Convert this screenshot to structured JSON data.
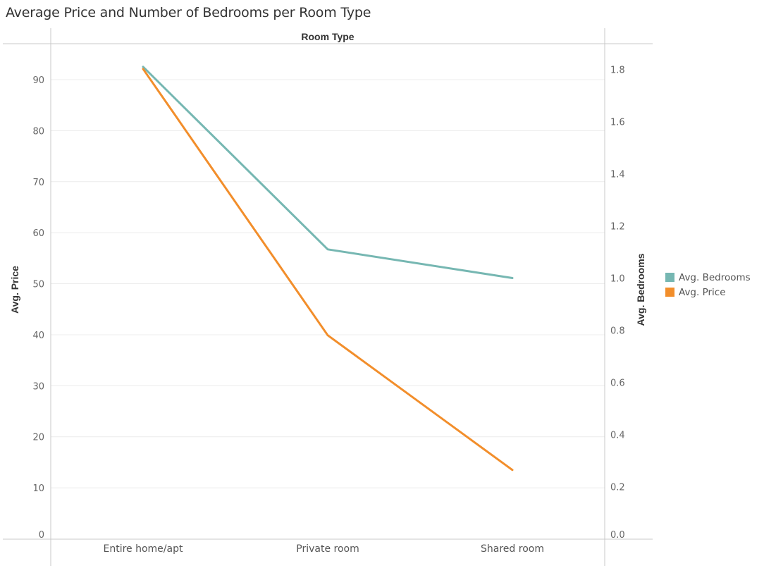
{
  "chart_data": {
    "type": "line",
    "title": "Average Price and Number of Bedrooms per Room Type",
    "column_header": "Room Type",
    "categories": [
      "Entire home/apt",
      "Private room",
      "Shared room"
    ],
    "series": [
      {
        "name": "Avg. Bedrooms",
        "axis": "right",
        "color": "#76b7b2",
        "values": [
          1.81,
          1.11,
          1.0
        ]
      },
      {
        "name": "Avg. Price",
        "axis": "left",
        "color": "#f28e2b",
        "values": [
          92.1,
          39.9,
          13.5
        ]
      }
    ],
    "y_left": {
      "label": "Avg. Price",
      "ylim": [
        0,
        96
      ],
      "ticks": [
        0,
        10,
        20,
        30,
        40,
        50,
        60,
        70,
        80,
        90
      ]
    },
    "y_right": {
      "label": "Avg. Bedrooms",
      "ylim": [
        0,
        1.88
      ],
      "ticks": [
        "0.0",
        "0.2",
        "0.4",
        "0.6",
        "0.8",
        "1.0",
        "1.2",
        "1.4",
        "1.6",
        "1.8"
      ]
    },
    "grid": true,
    "legend_position": "right"
  }
}
